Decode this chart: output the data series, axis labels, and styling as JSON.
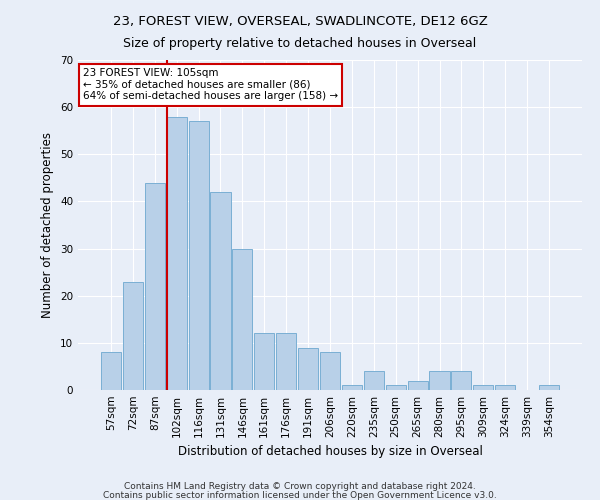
{
  "title1": "23, FOREST VIEW, OVERSEAL, SWADLINCOTE, DE12 6GZ",
  "title2": "Size of property relative to detached houses in Overseal",
  "xlabel": "Distribution of detached houses by size in Overseal",
  "ylabel": "Number of detached properties",
  "categories": [
    "57sqm",
    "72sqm",
    "87sqm",
    "102sqm",
    "116sqm",
    "131sqm",
    "146sqm",
    "161sqm",
    "176sqm",
    "191sqm",
    "206sqm",
    "220sqm",
    "235sqm",
    "250sqm",
    "265sqm",
    "280sqm",
    "295sqm",
    "309sqm",
    "324sqm",
    "339sqm",
    "354sqm"
  ],
  "values": [
    8,
    23,
    44,
    58,
    57,
    42,
    30,
    12,
    12,
    9,
    8,
    1,
    4,
    1,
    2,
    4,
    4,
    1,
    1,
    0,
    1
  ],
  "bar_color": "#b8d0e8",
  "bar_edge_color": "#7aafd4",
  "vline_color": "#cc0000",
  "annotation_text": "23 FOREST VIEW: 105sqm\n← 35% of detached houses are smaller (86)\n64% of semi-detached houses are larger (158) →",
  "annotation_box_color": "#ffffff",
  "annotation_box_edge": "#cc0000",
  "ylim": [
    0,
    70
  ],
  "yticks": [
    0,
    10,
    20,
    30,
    40,
    50,
    60,
    70
  ],
  "background_color": "#e8eef8",
  "grid_color": "#ffffff",
  "footnote1": "Contains HM Land Registry data © Crown copyright and database right 2024.",
  "footnote2": "Contains public sector information licensed under the Open Government Licence v3.0.",
  "property_bin_index": 3,
  "title1_fontsize": 9.5,
  "title2_fontsize": 9,
  "axis_label_fontsize": 8.5,
  "tick_fontsize": 7.5,
  "annotation_fontsize": 7.5,
  "footnote_fontsize": 6.5
}
